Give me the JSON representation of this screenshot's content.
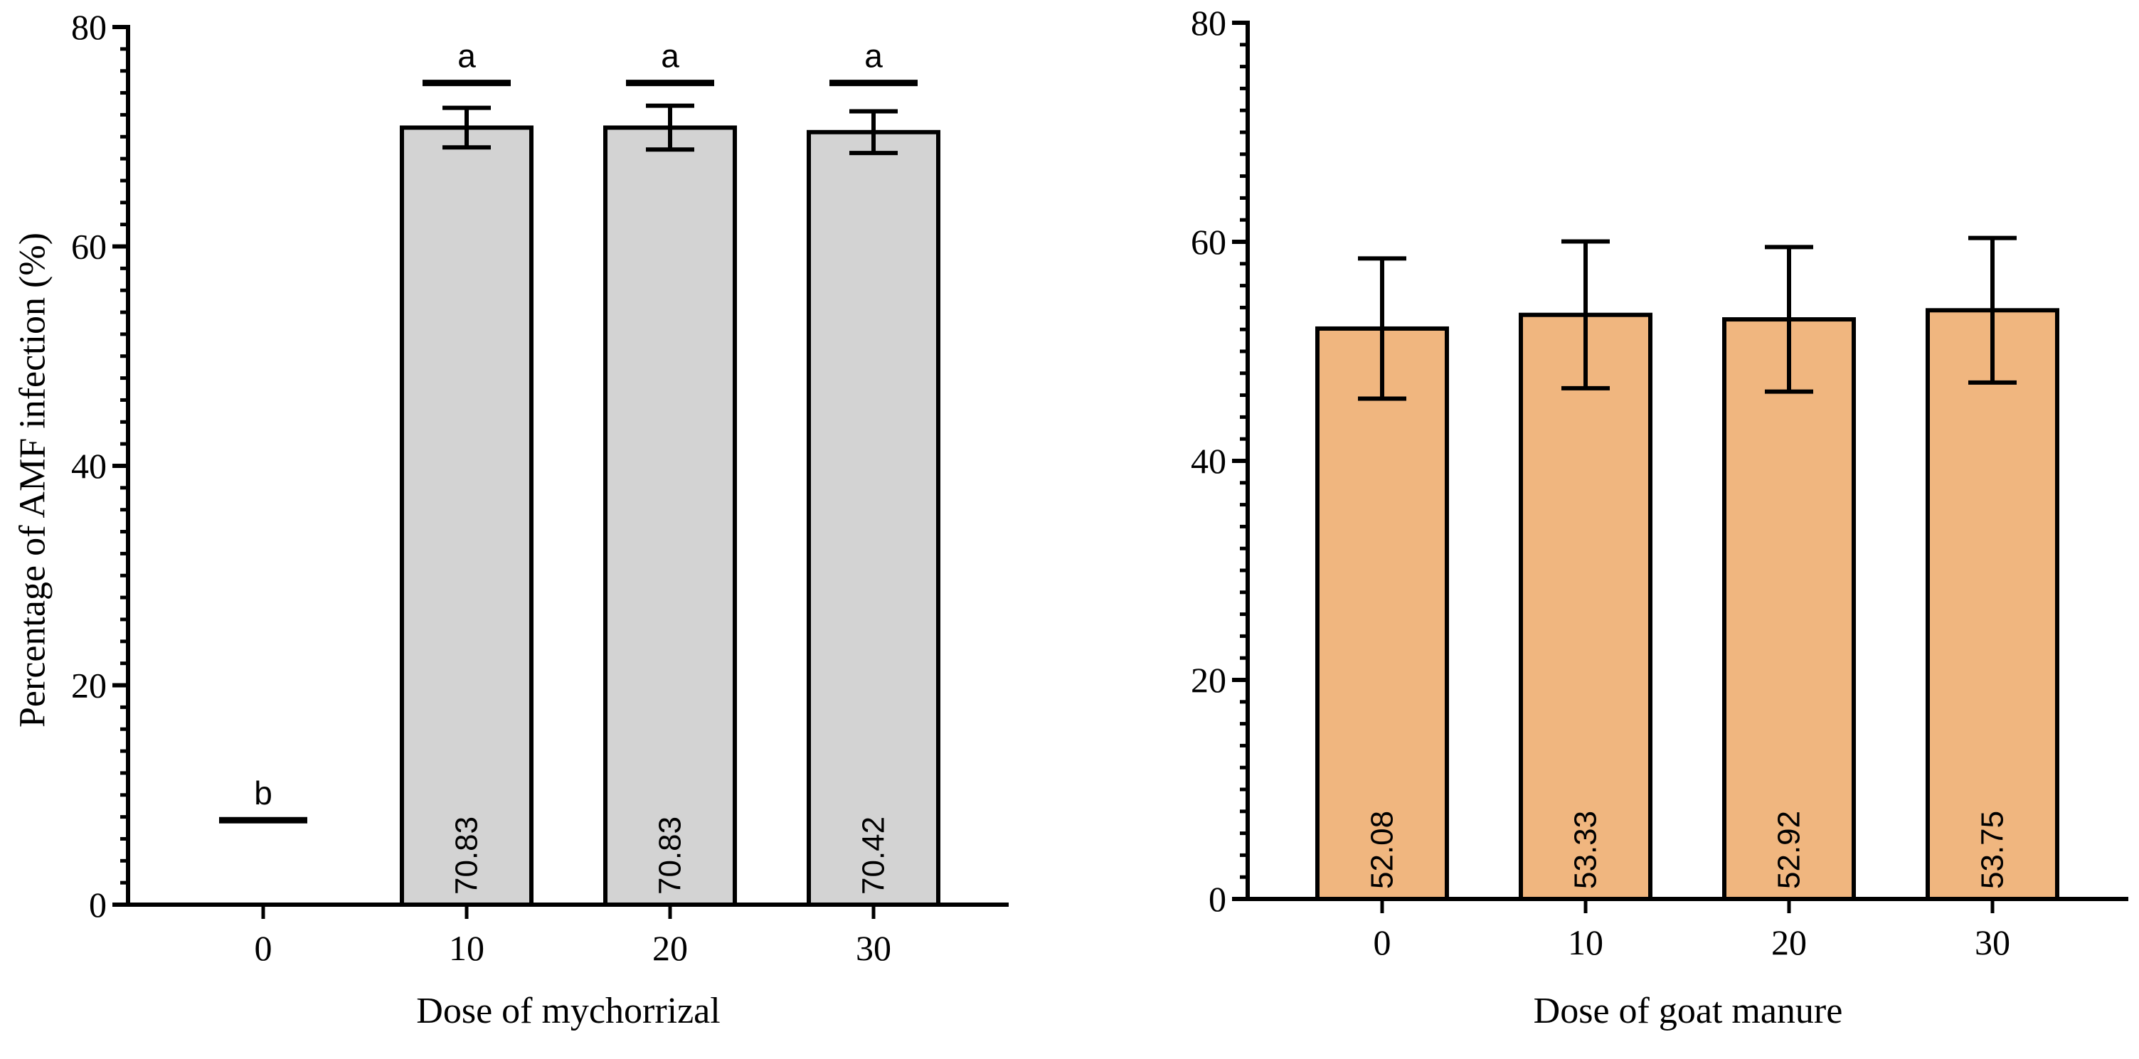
{
  "chart_data": [
    {
      "type": "bar",
      "title": "",
      "xlabel": "Dose of mychorrizal",
      "ylabel": "Percentage of AMF infection (%)",
      "categories": [
        "0",
        "10",
        "20",
        "30"
      ],
      "values": [
        0,
        70.83,
        70.83,
        70.42
      ],
      "value_labels": [
        "",
        "70.83",
        "70.83",
        "70.42"
      ],
      "error_bars": [
        0,
        1.8,
        2.0,
        1.9
      ],
      "significance_letters": [
        "b",
        "a",
        "a",
        "a"
      ],
      "significance_marker_values": [
        7.7,
        74.9,
        74.9,
        74.9
      ],
      "ylim": [
        0,
        80
      ],
      "yticks": [
        0,
        20,
        40,
        60,
        80
      ],
      "ytick_labels": [
        "0",
        "20",
        "40",
        "60",
        "80"
      ],
      "bar_color": "#d3d3d3",
      "grid": false
    },
    {
      "type": "bar",
      "title": "",
      "xlabel": "Dose of goat manure",
      "ylabel": "",
      "categories": [
        "0",
        "10",
        "20",
        "30"
      ],
      "values": [
        52.08,
        53.33,
        52.92,
        53.75
      ],
      "value_labels": [
        "52.08",
        "53.33",
        "52.92",
        "53.75"
      ],
      "error_bars": [
        6.4,
        6.7,
        6.6,
        6.6
      ],
      "ylim": [
        0,
        80
      ],
      "yticks": [
        0,
        20,
        40,
        60,
        80
      ],
      "ytick_labels": [
        "0",
        "20",
        "40",
        "60",
        "80"
      ],
      "bar_color": "#f0b67f",
      "grid": false
    }
  ]
}
